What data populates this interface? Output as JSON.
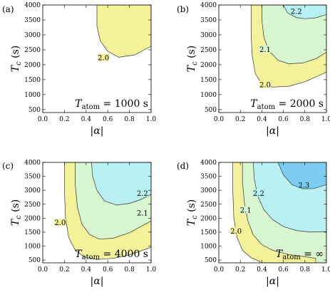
{
  "colors": {
    "level_2_0": "#f3f19a",
    "level_2_1": "#d8f6cf",
    "level_2_2": "#b9f1f2",
    "level_2_3": "#7ccdf1",
    "frame": "#000000"
  },
  "chart_data": [
    {
      "type": "contour",
      "panel_label": "(a)",
      "xlabel": "|α|",
      "ylabel_main": "T",
      "ylabel_sub": "c",
      "ylabel_unit": " (s)",
      "xlim": [
        0.0,
        1.0
      ],
      "ylim": [
        400,
        4000
      ],
      "x_ticks": [
        "0.0",
        "0.2",
        "0.4",
        "0.6",
        "0.8",
        "1.0"
      ],
      "y_ticks": [
        "500",
        "1000",
        "1500",
        "2000",
        "2500",
        "3000",
        "3500",
        "4000"
      ],
      "annotation_main": "T",
      "annotation_sub": "atom",
      "annotation_value": " = 1000 s",
      "regions": [
        {
          "level": "2.0",
          "label_at": [
            0.56,
            2200
          ],
          "boundary": [
            [
              0.5,
              4000
            ],
            [
              0.5,
              3300
            ],
            [
              0.53,
              2800
            ],
            [
              0.6,
              2450
            ],
            [
              0.7,
              2250
            ],
            [
              0.85,
              2330
            ],
            [
              1.0,
              2620
            ],
            [
              1.0,
              4000
            ]
          ]
        }
      ]
    },
    {
      "type": "contour",
      "panel_label": "(b)",
      "xlabel": "|α|",
      "ylabel_main": "T",
      "ylabel_sub": "c",
      "ylabel_unit": " (s)",
      "xlim": [
        0.0,
        1.0
      ],
      "ylim": [
        400,
        4000
      ],
      "x_ticks": [
        "0.0",
        "0.2",
        "0.4",
        "0.6",
        "0.8",
        "1.0"
      ],
      "y_ticks": [
        "500",
        "1000",
        "1500",
        "2000",
        "2500",
        "3000",
        "3500",
        "4000"
      ],
      "annotation_main": "T",
      "annotation_sub": "atom",
      "annotation_value": " = 2000 s",
      "regions": [
        {
          "level": "2.0",
          "label_at": [
            0.43,
            1300
          ],
          "boundary": [
            [
              0.3,
              4000
            ],
            [
              0.3,
              3000
            ],
            [
              0.31,
              2300
            ],
            [
              0.34,
              1700
            ],
            [
              0.4,
              1350
            ],
            [
              0.5,
              1250
            ],
            [
              0.65,
              1280
            ],
            [
              0.8,
              1430
            ],
            [
              1.0,
              1750
            ],
            [
              1.0,
              4000
            ]
          ]
        },
        {
          "level": "2.1",
          "label_at": [
            0.43,
            2480
          ],
          "boundary": [
            [
              0.4,
              4000
            ],
            [
              0.4,
              3500
            ],
            [
              0.42,
              2900
            ],
            [
              0.47,
              2450
            ],
            [
              0.55,
              2150
            ],
            [
              0.65,
              2030
            ],
            [
              0.78,
              2060
            ],
            [
              0.9,
              2200
            ],
            [
              1.0,
              2420
            ],
            [
              1.0,
              4000
            ]
          ]
        },
        {
          "level": "2.2",
          "label_at": [
            0.72,
            3750
          ],
          "boundary": [
            [
              0.6,
              4000
            ],
            [
              0.64,
              3730
            ],
            [
              0.72,
              3580
            ],
            [
              0.8,
              3540
            ],
            [
              0.9,
              3570
            ],
            [
              1.0,
              3680
            ],
            [
              1.0,
              4000
            ]
          ]
        }
      ]
    },
    {
      "type": "contour",
      "panel_label": "(c)",
      "xlabel": "|α|",
      "ylabel_main": "T",
      "ylabel_sub": "c",
      "ylabel_unit": " (s)",
      "xlim": [
        0.0,
        1.0
      ],
      "ylim": [
        400,
        4000
      ],
      "x_ticks": [
        "0.0",
        "0.2",
        "0.4",
        "0.6",
        "0.8",
        "1.0"
      ],
      "y_ticks": [
        "500",
        "1000",
        "1500",
        "2000",
        "2500",
        "3000",
        "3500",
        "4000"
      ],
      "annotation_main": "T",
      "annotation_sub": "atom",
      "annotation_value": " = 4000 s",
      "regions": [
        {
          "level": "2.0",
          "label_at": [
            0.16,
            1800
          ],
          "boundary": [
            [
              0.2,
              4000
            ],
            [
              0.2,
              3000
            ],
            [
              0.21,
              2000
            ],
            [
              0.24,
              1300
            ],
            [
              0.3,
              850
            ],
            [
              0.38,
              620
            ],
            [
              0.5,
              520
            ],
            [
              0.65,
              560
            ],
            [
              0.8,
              680
            ],
            [
              1.0,
              960
            ],
            [
              1.0,
              4000
            ]
          ]
        },
        {
          "level": "2.1",
          "label_at": [
            0.92,
            2150
          ],
          "boundary": [
            [
              0.3,
              4000
            ],
            [
              0.3,
              3200
            ],
            [
              0.32,
              2400
            ],
            [
              0.36,
              1800
            ],
            [
              0.43,
              1420
            ],
            [
              0.52,
              1250
            ],
            [
              0.65,
              1280
            ],
            [
              0.8,
              1480
            ],
            [
              1.0,
              1900
            ],
            [
              1.0,
              4000
            ]
          ]
        },
        {
          "level": "2.2",
          "label_at": [
            0.92,
            2850
          ],
          "boundary": [
            [
              0.45,
              4000
            ],
            [
              0.46,
              3500
            ],
            [
              0.5,
              3000
            ],
            [
              0.57,
              2620
            ],
            [
              0.68,
              2470
            ],
            [
              0.8,
              2530
            ],
            [
              0.9,
              2660
            ],
            [
              1.0,
              2850
            ],
            [
              1.0,
              4000
            ]
          ]
        }
      ]
    },
    {
      "type": "contour",
      "panel_label": "(d)",
      "xlabel": "|α|",
      "ylabel_main": "T",
      "ylabel_sub": "c",
      "ylabel_unit": " (s)",
      "xlim": [
        0.0,
        1.0
      ],
      "ylim": [
        400,
        4000
      ],
      "x_ticks": [
        "0.0",
        "0.2",
        "0.4",
        "0.6",
        "0.8",
        "1.0"
      ],
      "y_ticks": [
        "500",
        "1000",
        "1500",
        "2000",
        "2500",
        "3000",
        "3500",
        "4000"
      ],
      "annotation_main": "T",
      "annotation_sub": "atom",
      "annotation_value": " = ∞",
      "regions": [
        {
          "level": "2.0",
          "label_at": [
            0.16,
            1500
          ],
          "boundary": [
            [
              0.13,
              4000
            ],
            [
              0.13,
              3000
            ],
            [
              0.14,
              2000
            ],
            [
              0.17,
              1300
            ],
            [
              0.22,
              850
            ],
            [
              0.3,
              580
            ],
            [
              0.38,
              450
            ],
            [
              0.38,
              400
            ],
            [
              1.0,
              400
            ],
            [
              1.0,
              4000
            ]
          ]
        },
        {
          "level": "2.1",
          "label_at": [
            0.25,
            2250
          ],
          "boundary": [
            [
              0.22,
              4000
            ],
            [
              0.22,
              3300
            ],
            [
              0.24,
              2500
            ],
            [
              0.27,
              1900
            ],
            [
              0.32,
              1400
            ],
            [
              0.4,
              1050
            ],
            [
              0.5,
              850
            ],
            [
              0.65,
              700
            ],
            [
              0.8,
              620
            ],
            [
              0.9,
              560
            ],
            [
              0.9,
              400
            ],
            [
              1.0,
              400
            ],
            [
              1.0,
              4000
            ]
          ]
        },
        {
          "level": "2.2",
          "label_at": [
            0.37,
            2850
          ],
          "boundary": [
            [
              0.32,
              4000
            ],
            [
              0.33,
              3400
            ],
            [
              0.36,
              2800
            ],
            [
              0.42,
              2300
            ],
            [
              0.5,
              1950
            ],
            [
              0.6,
              1700
            ],
            [
              0.72,
              1560
            ],
            [
              0.85,
              1500
            ],
            [
              1.0,
              1520
            ],
            [
              1.0,
              4000
            ]
          ]
        },
        {
          "level": "2.3",
          "label_at": [
            0.79,
            3150
          ],
          "boundary": [
            [
              0.55,
              4000
            ],
            [
              0.6,
              3550
            ],
            [
              0.68,
              3200
            ],
            [
              0.78,
              3050
            ],
            [
              0.88,
              3060
            ],
            [
              1.0,
              3200
            ],
            [
              1.0,
              4000
            ]
          ]
        }
      ]
    }
  ]
}
